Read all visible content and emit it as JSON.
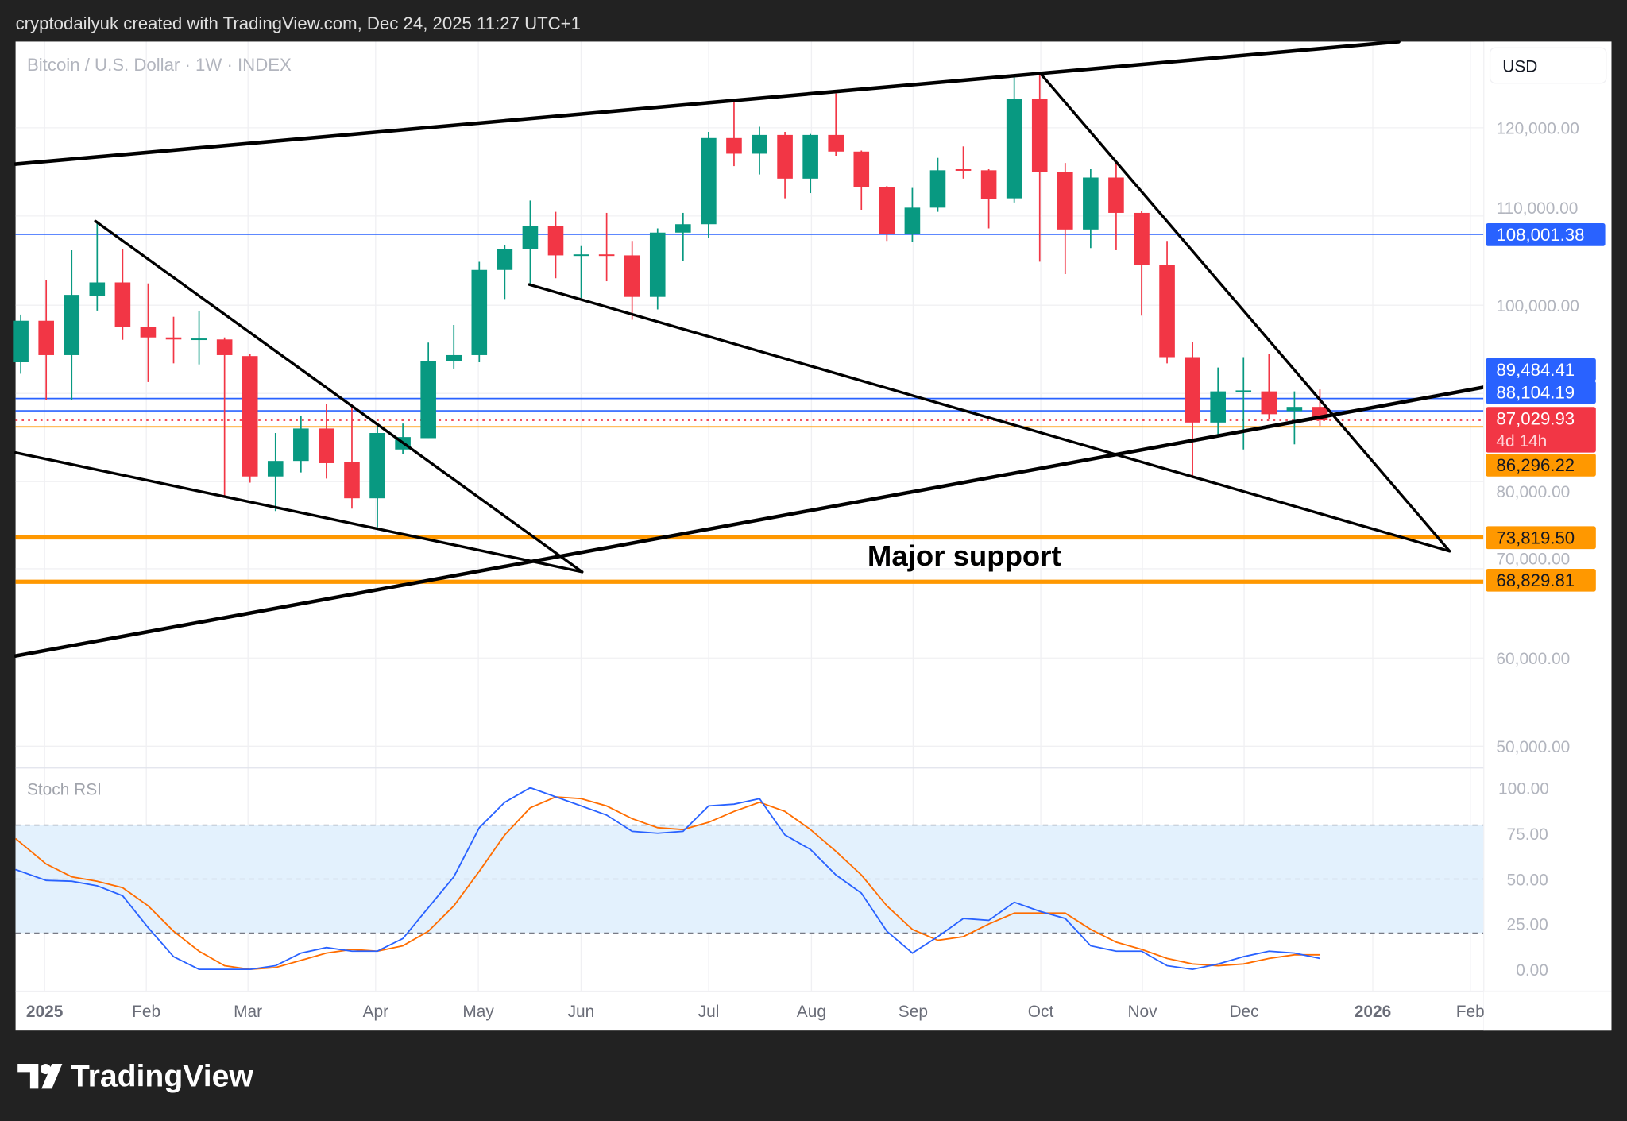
{
  "header": {
    "caption": "cryptodailyuk created with TradingView.com, Dec 24, 2025 11:27 UTC+1"
  },
  "chart": {
    "symbol_legend": "Bitcoin / U.S. Dollar · 1W · INDEX",
    "currency_button": "USD",
    "annotation": "Major support",
    "indicator_name": "Stoch RSI"
  },
  "logo": {
    "text": "TradingView"
  },
  "colors": {
    "up": "#089981",
    "down": "#f23645",
    "blue_level": "#2962ff",
    "orange_level": "#ff9800",
    "stoch_k": "#2962ff",
    "stoch_d": "#ff6d00",
    "stoch_band": "#e3f1fd"
  },
  "price_axis": {
    "labels": [
      "120,000.00",
      "110,000.00",
      "100,000.00",
      "80,000.00",
      "70,000.00",
      "60,000.00",
      "50,000.00"
    ]
  },
  "stoch_axis": {
    "labels": [
      "100.00",
      "75.00",
      "50.00",
      "25.00",
      "0.00"
    ]
  },
  "time_axis": {
    "labels": [
      "2025",
      "Feb",
      "Mar",
      "Apr",
      "May",
      "Jun",
      "Jul",
      "Aug",
      "Sep",
      "Oct",
      "Nov",
      "Dec",
      "2026",
      "Feb"
    ]
  },
  "levels": [
    {
      "price": 108001.38,
      "label": "108,001.38",
      "color": "#2962ff",
      "style": "solid"
    },
    {
      "price": 89484.41,
      "label": "89,484.41",
      "color": "#2962ff",
      "style": "solid"
    },
    {
      "price": 88104.19,
      "label": "88,104.19",
      "color": "#2962ff",
      "style": "solid"
    },
    {
      "price": 87029.93,
      "label": "87,029.93",
      "sublabel": "4d 14h",
      "color": "#f23645",
      "style": "dotted"
    },
    {
      "price": 86296.22,
      "label": "86,296.22",
      "color": "#ff9800",
      "style": "solid"
    },
    {
      "price": 73819.5,
      "label": "73,819.50",
      "color": "#ff9800",
      "style": "thick"
    },
    {
      "price": 68829.81,
      "label": "68,829.81",
      "color": "#ff9800",
      "style": "thick"
    }
  ],
  "chart_data": {
    "type": "candlestick",
    "interval": "1W",
    "price_range": [
      45000,
      130000
    ],
    "candles": [
      [
        93570,
        98950,
        92280,
        98250
      ],
      [
        98250,
        102800,
        89350,
        94380
      ],
      [
        94380,
        106200,
        89350,
        101170
      ],
      [
        101050,
        109500,
        99400,
        102570
      ],
      [
        102570,
        106300,
        96100,
        97540
      ],
      [
        97540,
        102460,
        91340,
        96370
      ],
      [
        96370,
        98700,
        93450,
        96140
      ],
      [
        96140,
        99300,
        93330,
        96250
      ],
      [
        96140,
        96370,
        78470,
        94380
      ],
      [
        94270,
        94500,
        80000,
        80700
      ],
      [
        80700,
        85600,
        76800,
        82450
      ],
      [
        82450,
        87500,
        81160,
        86100
      ],
      [
        86100,
        88900,
        80460,
        82200
      ],
      [
        82300,
        88900,
        77070,
        78240
      ],
      [
        78240,
        86400,
        74960,
        85600
      ],
      [
        83740,
        86660,
        83270,
        85140
      ],
      [
        85020,
        95790,
        85020,
        93680
      ],
      [
        93680,
        97780,
        92860,
        94380
      ],
      [
        94380,
        104900,
        93570,
        103980
      ],
      [
        103980,
        106800,
        100700,
        106320
      ],
      [
        106320,
        111800,
        102200,
        108890
      ],
      [
        108890,
        110530,
        103040,
        105620
      ],
      [
        105620,
        106670,
        100820,
        105730
      ],
      [
        105730,
        110410,
        102700,
        105620
      ],
      [
        105620,
        107250,
        98360,
        100940
      ],
      [
        100940,
        108660,
        99530,
        108190
      ],
      [
        108190,
        110410,
        105030,
        109130
      ],
      [
        109130,
        119540,
        107600,
        118840
      ],
      [
        118840,
        123050,
        115680,
        117080
      ],
      [
        117080,
        120120,
        114740,
        119190
      ],
      [
        119190,
        119540,
        112050,
        114270
      ],
      [
        114270,
        119300,
        112640,
        119190
      ],
      [
        119190,
        123870,
        116850,
        117320
      ],
      [
        117320,
        117430,
        110760,
        113340
      ],
      [
        113340,
        113450,
        107250,
        108070
      ],
      [
        108070,
        113220,
        107140,
        111000
      ],
      [
        111000,
        116610,
        110530,
        115210
      ],
      [
        115330,
        117900,
        114270,
        115210
      ],
      [
        115210,
        115330,
        108660,
        111930
      ],
      [
        112050,
        125860,
        111580,
        123280
      ],
      [
        123280,
        125970,
        104910,
        114980
      ],
      [
        114980,
        116030,
        103510,
        108540
      ],
      [
        108540,
        115330,
        106440,
        114390
      ],
      [
        114390,
        116030,
        106200,
        110410
      ],
      [
        110410,
        110650,
        98830,
        104560
      ],
      [
        104560,
        107250,
        93450,
        94150
      ],
      [
        94150,
        95900,
        80580,
        86780
      ],
      [
        86780,
        92980,
        85140,
        90290
      ],
      [
        90290,
        94150,
        83740,
        90400
      ],
      [
        90290,
        94500,
        87130,
        87720
      ],
      [
        88070,
        90290,
        84320,
        88540
      ],
      [
        88540,
        90520,
        86400,
        87030
      ]
    ],
    "stoch_rsi": {
      "range": [
        0,
        100
      ],
      "bands": [
        80,
        50,
        20
      ],
      "k": [
        55,
        49,
        48.5,
        46,
        40.5,
        23,
        7,
        0,
        0,
        0,
        2,
        9,
        12,
        10,
        10,
        17,
        34,
        51,
        78,
        92,
        100,
        95,
        90,
        85,
        76,
        75,
        76,
        90,
        91,
        94,
        74,
        66,
        52,
        42,
        21,
        9,
        18,
        28,
        27,
        37,
        32,
        28,
        13,
        10,
        10,
        2,
        0,
        3,
        7,
        10,
        9,
        6
      ],
      "d": [
        72,
        58,
        51,
        48.5,
        45,
        35,
        21,
        10,
        2,
        0,
        1,
        5,
        9,
        11,
        10,
        13,
        21,
        35,
        54,
        74,
        89,
        95,
        94,
        90,
        83,
        78,
        77,
        81,
        87,
        92,
        87,
        77,
        65,
        52,
        35,
        22,
        16,
        18,
        25,
        31,
        31,
        31,
        22,
        15,
        11,
        6,
        3,
        2,
        3,
        6,
        8,
        8
      ]
    }
  }
}
